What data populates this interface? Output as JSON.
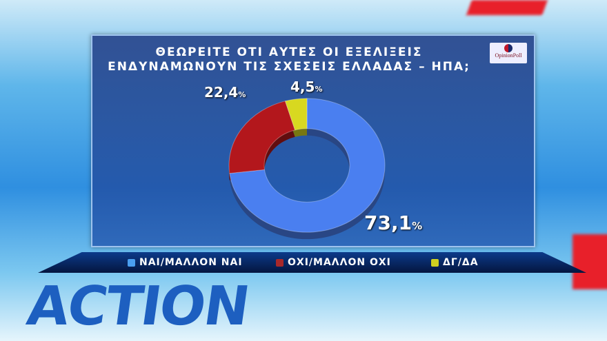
{
  "chart_data": {
    "type": "pie",
    "title": "ΘΕΩΡΕΙΤΕ ΟΤΙ ΑΥΤΕΣ ΟΙ ΕΞΕΛΙΞΕΙΣ ΕΝΔΥΝΑΜΩΝΟΥΝ ΤΙΣ ΣΧΕΣΕΙΣ ΕΛΛΑΔΑΣ – ΗΠΑ;",
    "title_line1": "ΘΕΩΡΕΙΤΕ ΟΤΙ ΑΥΤΕΣ ΟΙ ΕΞΕΛΙΞΕΙΣ",
    "title_line2": "ΕΝΔΥΝΑΜΩΝΟΥΝ ΤΙΣ ΣΧΕΣΕΙΣ ΕΛΛΑΔΑΣ – ΗΠΑ;",
    "donut": true,
    "legend_position": "bottom",
    "slices": [
      {
        "name": "ΝΑΙ/ΜΑΛΛΟΝ ΝΑΙ",
        "value": 73.1,
        "label": "73,1",
        "color": "#4a7ff0"
      },
      {
        "name": "ΟΧΙ/ΜΑΛΛΟΝ ΟΧΙ",
        "value": 22.4,
        "label": "22,4",
        "color": "#b3171c"
      },
      {
        "name": "ΔΓ/ΔΑ",
        "value": 4.5,
        "label": "4,5",
        "color": "#d8d820"
      }
    ],
    "unit": "%"
  },
  "logo_text": "OpinionPoll",
  "background_text": "ACTION"
}
